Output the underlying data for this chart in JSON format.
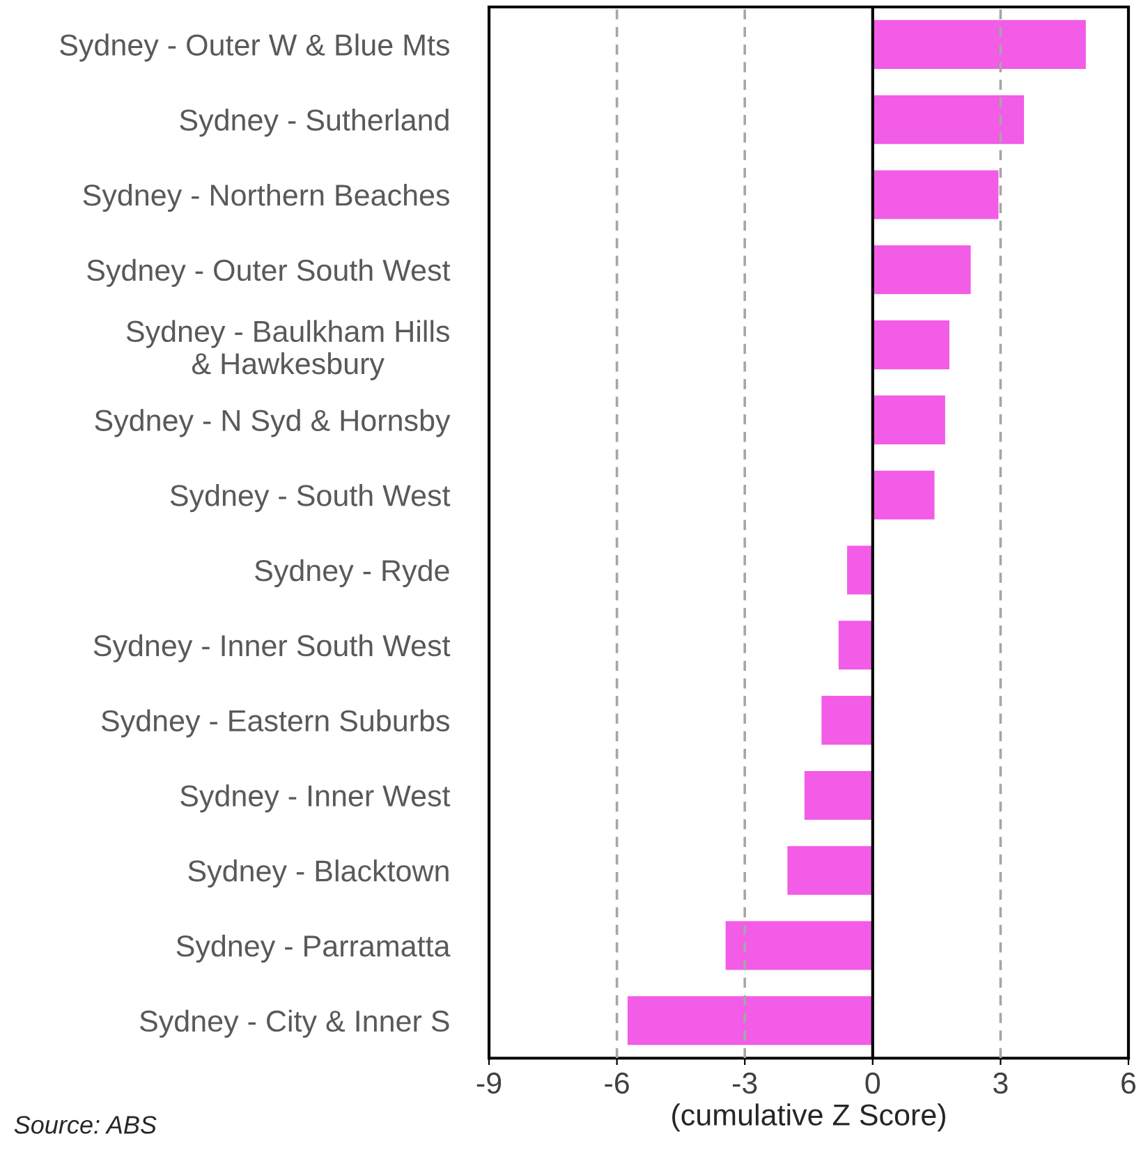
{
  "chart_data": {
    "type": "bar",
    "orientation": "horizontal",
    "categories": [
      "Sydney - Outer W & Blue Mts",
      "Sydney - Sutherland",
      "Sydney - Northern Beaches",
      "Sydney - Outer South West",
      "Sydney - Baulkham Hills\n& Hawkesbury",
      "Sydney - N Syd & Hornsby",
      "Sydney - South West",
      "Sydney - Ryde",
      "Sydney - Inner South West",
      "Sydney - Eastern Suburbs",
      "Sydney - Inner West",
      "Sydney - Blacktown",
      "Sydney - Parramatta",
      "Sydney - City & Inner S"
    ],
    "values": [
      5.0,
      3.55,
      2.95,
      2.3,
      1.8,
      1.7,
      1.45,
      -0.6,
      -0.8,
      -1.2,
      -1.6,
      -2.0,
      -3.45,
      -5.75
    ],
    "color": "#f25ce6",
    "xlim": [
      -9,
      6
    ],
    "xticks": [
      -9,
      -6,
      -3,
      0,
      3,
      6
    ],
    "xlabel": "(cumulative Z Score)",
    "ref_lines": [
      {
        "axis": "x",
        "value": -6,
        "color": "#a6a6a6",
        "line_style": "dashed"
      },
      {
        "axis": "x",
        "value": -3,
        "color": "#a6a6a6",
        "line_style": "dashed"
      },
      {
        "axis": "x",
        "value": 3,
        "color": "#a6a6a6",
        "line_style": "dashed"
      },
      {
        "axis": "x",
        "value": 0,
        "color": "#000000",
        "line_style": "solid"
      }
    ],
    "grid": false,
    "annotations": [
      "Source: ABS"
    ]
  }
}
